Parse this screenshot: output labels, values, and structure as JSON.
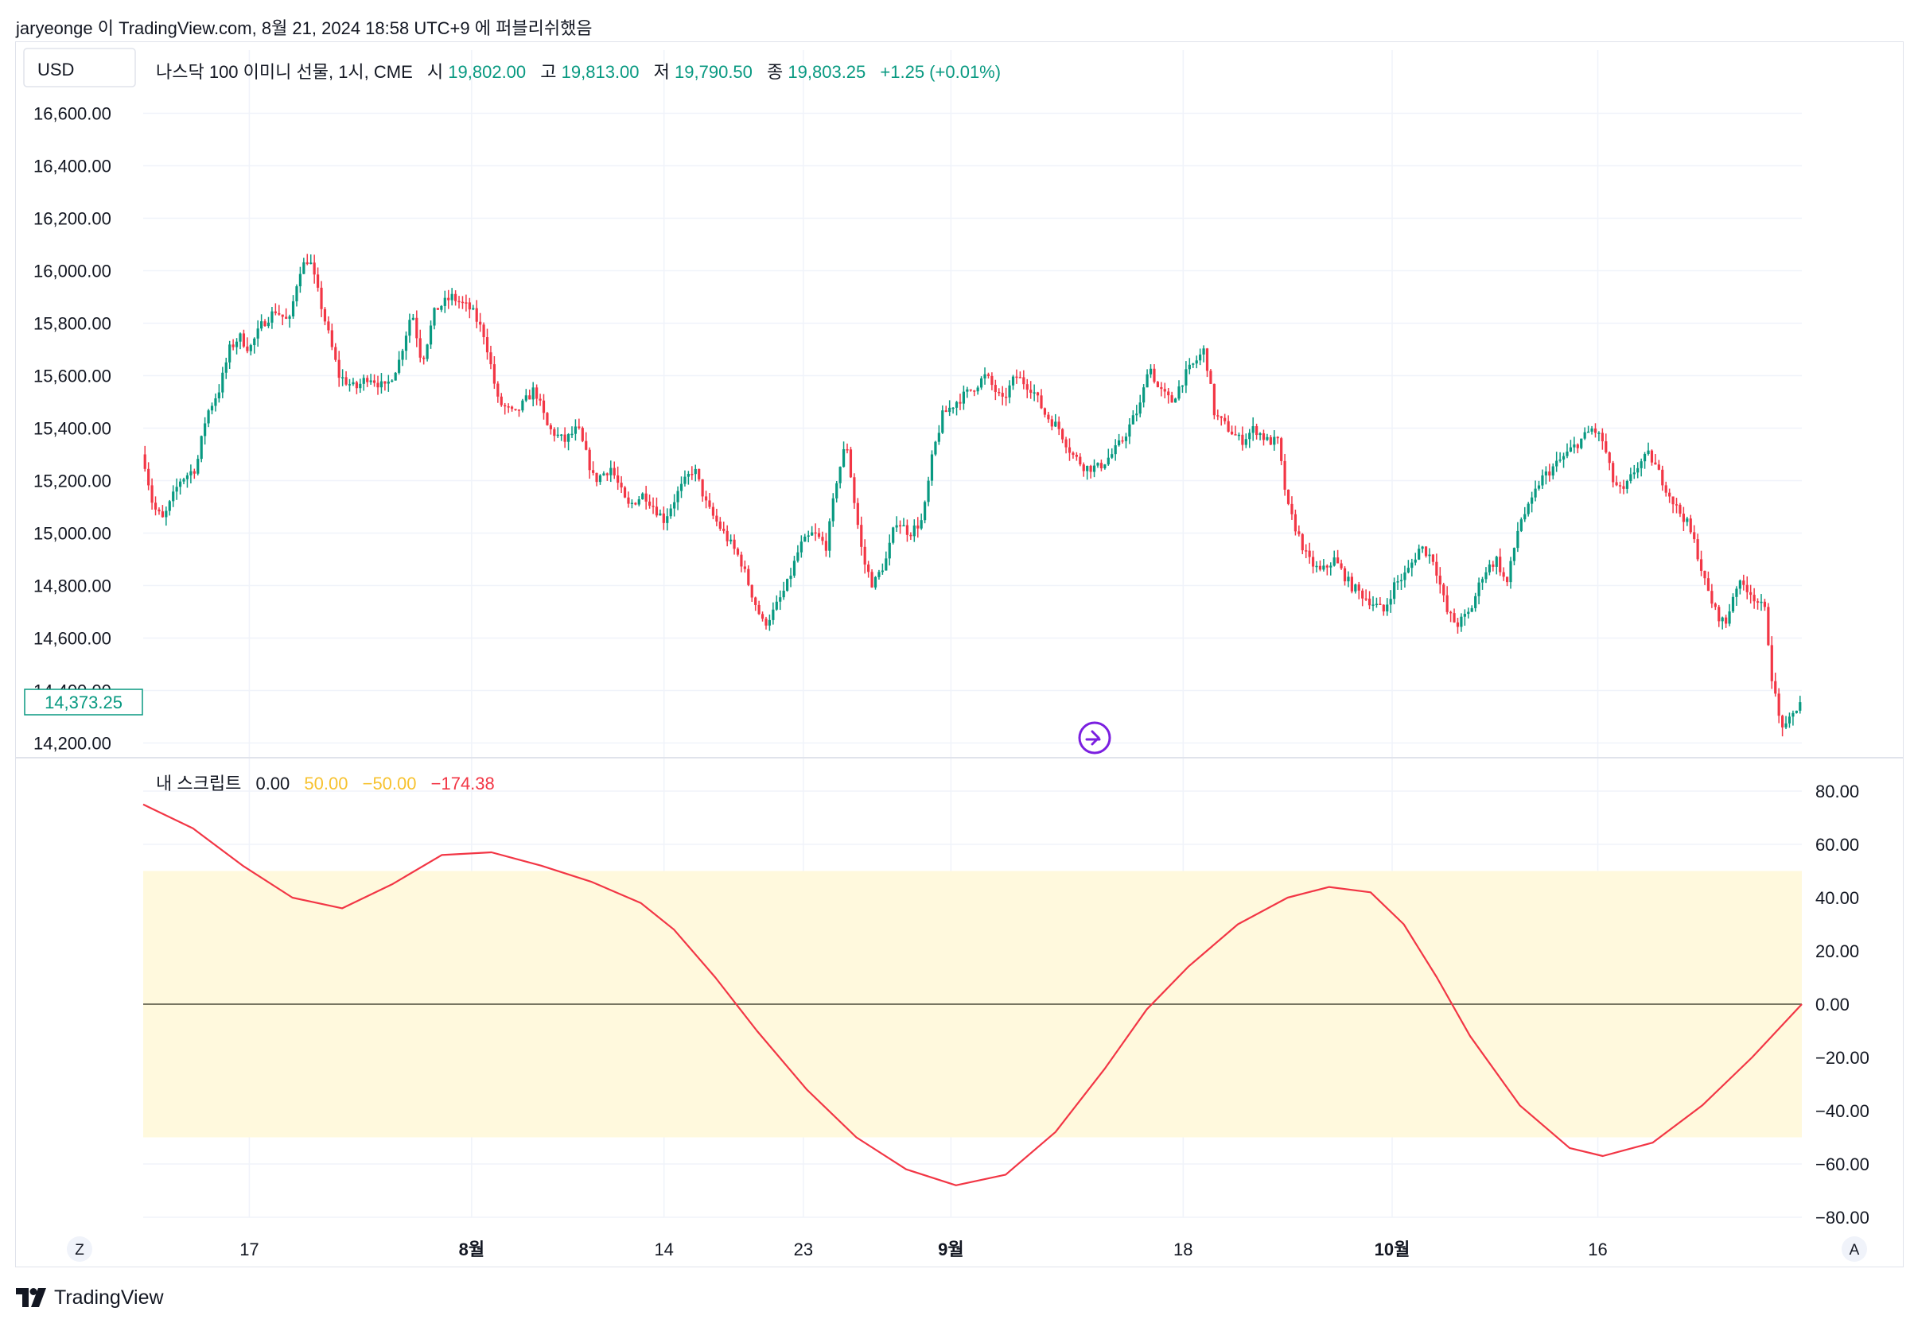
{
  "publish_note": "jaryeonge 이 TradingView.com, 8월 21, 2024 18:58 UTC+9 에 퍼블리쉬했음",
  "currency_button": "USD",
  "legend": {
    "symbol": "나스닥 100 이미니 선물, 1시, CME",
    "open_label": "시",
    "open_value": "19,802.00",
    "high_label": "고",
    "high_value": "19,813.00",
    "low_label": "저",
    "low_value": "19,790.50",
    "close_label": "종",
    "close_value": "19,803.25",
    "change": "+1.25 (+0.01%)"
  },
  "price_label_current": "14,373.25",
  "indicator": {
    "name": "내 스크립트",
    "v1": "0.00",
    "v2": "50.00",
    "v3": "−50.00",
    "v4": "−174.38"
  },
  "scale_buttons": {
    "left": "Z",
    "right": "A"
  },
  "brand": "TradingView",
  "colors": {
    "up": "#089981",
    "down": "#f23645",
    "indicator_line": "#f23645",
    "band_fill": "#fff9dd",
    "band_value_color": "#f7c22f",
    "grid": "#f0f3fa",
    "zero_line": "#4b4b3a",
    "marker": "#7b1fe0"
  },
  "chart_data": [
    {
      "type": "candlestick",
      "title": "나스닥 100 이미니 선물, 1시, CME",
      "ylim": [
        14150,
        16750
      ],
      "yticks": [
        14200,
        14400,
        14600,
        14800,
        15000,
        15200,
        15400,
        15600,
        15800,
        16000,
        16200,
        16400,
        16600
      ],
      "ytick_labels": [
        "14,200.00",
        "14,400.00",
        "14,600.00",
        "14,800.00",
        "15,000.00",
        "15,200.00",
        "15,400.00",
        "15,600.00",
        "15,800.00",
        "16,000.00",
        "16,200.00",
        "16,400.00",
        "16,600.00"
      ],
      "y_axis_side": "left",
      "xticks": [
        {
          "t": 0.064,
          "label": "17",
          "bold": false
        },
        {
          "t": 0.198,
          "label": "8월",
          "bold": true
        },
        {
          "t": 0.314,
          "label": "14",
          "bold": false
        },
        {
          "t": 0.398,
          "label": "23",
          "bold": false
        },
        {
          "t": 0.487,
          "label": "9월",
          "bold": true
        },
        {
          "t": 0.627,
          "label": "18",
          "bold": false
        },
        {
          "t": 0.753,
          "label": "10월",
          "bold": true
        },
        {
          "t": 0.877,
          "label": "16",
          "bold": false
        }
      ],
      "price_path": [
        [
          0.0,
          15300
        ],
        [
          0.006,
          15100
        ],
        [
          0.012,
          15050
        ],
        [
          0.022,
          15200
        ],
        [
          0.032,
          15250
        ],
        [
          0.038,
          15450
        ],
        [
          0.046,
          15550
        ],
        [
          0.052,
          15700
        ],
        [
          0.058,
          15750
        ],
        [
          0.064,
          15700
        ],
        [
          0.072,
          15800
        ],
        [
          0.08,
          15850
        ],
        [
          0.088,
          15800
        ],
        [
          0.094,
          16000
        ],
        [
          0.1,
          16050
        ],
        [
          0.106,
          15900
        ],
        [
          0.112,
          15750
        ],
        [
          0.118,
          15600
        ],
        [
          0.128,
          15550
        ],
        [
          0.136,
          15600
        ],
        [
          0.146,
          15550
        ],
        [
          0.154,
          15650
        ],
        [
          0.162,
          15850
        ],
        [
          0.168,
          15650
        ],
        [
          0.176,
          15850
        ],
        [
          0.186,
          15900
        ],
        [
          0.198,
          15850
        ],
        [
          0.206,
          15750
        ],
        [
          0.214,
          15500
        ],
        [
          0.224,
          15450
        ],
        [
          0.236,
          15550
        ],
        [
          0.244,
          15400
        ],
        [
          0.254,
          15350
        ],
        [
          0.262,
          15400
        ],
        [
          0.272,
          15200
        ],
        [
          0.282,
          15250
        ],
        [
          0.292,
          15100
        ],
        [
          0.302,
          15150
        ],
        [
          0.314,
          15050
        ],
        [
          0.322,
          15150
        ],
        [
          0.332,
          15250
        ],
        [
          0.34,
          15100
        ],
        [
          0.35,
          15000
        ],
        [
          0.36,
          14900
        ],
        [
          0.368,
          14750
        ],
        [
          0.374,
          14650
        ],
        [
          0.38,
          14700
        ],
        [
          0.388,
          14800
        ],
        [
          0.396,
          14950
        ],
        [
          0.404,
          15000
        ],
        [
          0.412,
          14950
        ],
        [
          0.418,
          15200
        ],
        [
          0.424,
          15350
        ],
        [
          0.428,
          15150
        ],
        [
          0.434,
          14900
        ],
        [
          0.44,
          14800
        ],
        [
          0.448,
          14900
        ],
        [
          0.454,
          15050
        ],
        [
          0.462,
          15000
        ],
        [
          0.47,
          15050
        ],
        [
          0.476,
          15300
        ],
        [
          0.482,
          15450
        ],
        [
          0.49,
          15500
        ],
        [
          0.5,
          15550
        ],
        [
          0.508,
          15600
        ],
        [
          0.518,
          15500
        ],
        [
          0.526,
          15600
        ],
        [
          0.536,
          15550
        ],
        [
          0.544,
          15450
        ],
        [
          0.552,
          15400
        ],
        [
          0.56,
          15300
        ],
        [
          0.568,
          15250
        ],
        [
          0.576,
          15250
        ],
        [
          0.584,
          15300
        ],
        [
          0.59,
          15350
        ],
        [
          0.598,
          15450
        ],
        [
          0.602,
          15500
        ],
        [
          0.606,
          15650
        ],
        [
          0.612,
          15550
        ],
        [
          0.62,
          15500
        ],
        [
          0.628,
          15600
        ],
        [
          0.634,
          15650
        ],
        [
          0.64,
          15700
        ],
        [
          0.646,
          15450
        ],
        [
          0.654,
          15400
        ],
        [
          0.662,
          15350
        ],
        [
          0.67,
          15400
        ],
        [
          0.678,
          15350
        ],
        [
          0.684,
          15350
        ],
        [
          0.69,
          15100
        ],
        [
          0.696,
          15000
        ],
        [
          0.702,
          14900
        ],
        [
          0.71,
          14850
        ],
        [
          0.718,
          14900
        ],
        [
          0.728,
          14800
        ],
        [
          0.738,
          14750
        ],
        [
          0.748,
          14700
        ],
        [
          0.754,
          14800
        ],
        [
          0.762,
          14850
        ],
        [
          0.77,
          14950
        ],
        [
          0.778,
          14900
        ],
        [
          0.786,
          14700
        ],
        [
          0.792,
          14650
        ],
        [
          0.8,
          14700
        ],
        [
          0.808,
          14850
        ],
        [
          0.816,
          14900
        ],
        [
          0.822,
          14800
        ],
        [
          0.83,
          15050
        ],
        [
          0.836,
          15100
        ],
        [
          0.842,
          15200
        ],
        [
          0.85,
          15250
        ],
        [
          0.858,
          15300
        ],
        [
          0.866,
          15350
        ],
        [
          0.874,
          15400
        ],
        [
          0.88,
          15350
        ],
        [
          0.886,
          15200
        ],
        [
          0.892,
          15150
        ],
        [
          0.9,
          15250
        ],
        [
          0.908,
          15300
        ],
        [
          0.916,
          15200
        ],
        [
          0.924,
          15100
        ],
        [
          0.93,
          15050
        ],
        [
          0.936,
          14950
        ],
        [
          0.942,
          14800
        ],
        [
          0.948,
          14700
        ],
        [
          0.954,
          14650
        ],
        [
          0.96,
          14800
        ],
        [
          0.966,
          14800
        ],
        [
          0.972,
          14750
        ],
        [
          0.978,
          14700
        ],
        [
          0.982,
          14450
        ],
        [
          0.986,
          14300
        ],
        [
          0.99,
          14250
        ],
        [
          0.994,
          14300
        ],
        [
          1.0,
          14373
        ]
      ]
    },
    {
      "type": "line",
      "title": "내 스크립트",
      "ylim": [
        -80,
        80
      ],
      "yticks": [
        -80,
        -60,
        -40,
        -20,
        0,
        20,
        40,
        60,
        80
      ],
      "ytick_labels": [
        "−80.00",
        "−60.00",
        "−40.00",
        "−20.00",
        "0.00",
        "20.00",
        "40.00",
        "60.00",
        "80.00"
      ],
      "y_axis_side": "right",
      "band": [
        -50,
        50
      ],
      "zero_line": 0,
      "series": [
        {
          "values_tx": [
            [
              0.0,
              75
            ],
            [
              0.03,
              66
            ],
            [
              0.06,
              52
            ],
            [
              0.09,
              40
            ],
            [
              0.12,
              36
            ],
            [
              0.15,
              45
            ],
            [
              0.18,
              56
            ],
            [
              0.21,
              57
            ],
            [
              0.24,
              52
            ],
            [
              0.27,
              46
            ],
            [
              0.3,
              38
            ],
            [
              0.32,
              28
            ],
            [
              0.345,
              10
            ],
            [
              0.37,
              -10
            ],
            [
              0.4,
              -32
            ],
            [
              0.43,
              -50
            ],
            [
              0.46,
              -62
            ],
            [
              0.49,
              -68
            ],
            [
              0.52,
              -64
            ],
            [
              0.55,
              -48
            ],
            [
              0.58,
              -24
            ],
            [
              0.605,
              -2
            ],
            [
              0.63,
              14
            ],
            [
              0.66,
              30
            ],
            [
              0.69,
              40
            ],
            [
              0.715,
              44
            ],
            [
              0.74,
              42
            ],
            [
              0.76,
              30
            ],
            [
              0.78,
              10
            ],
            [
              0.8,
              -12
            ],
            [
              0.83,
              -38
            ],
            [
              0.86,
              -54
            ],
            [
              0.88,
              -57
            ],
            [
              0.91,
              -52
            ],
            [
              0.94,
              -38
            ],
            [
              0.97,
              -20
            ],
            [
              1.0,
              0
            ]
          ]
        }
      ]
    }
  ]
}
